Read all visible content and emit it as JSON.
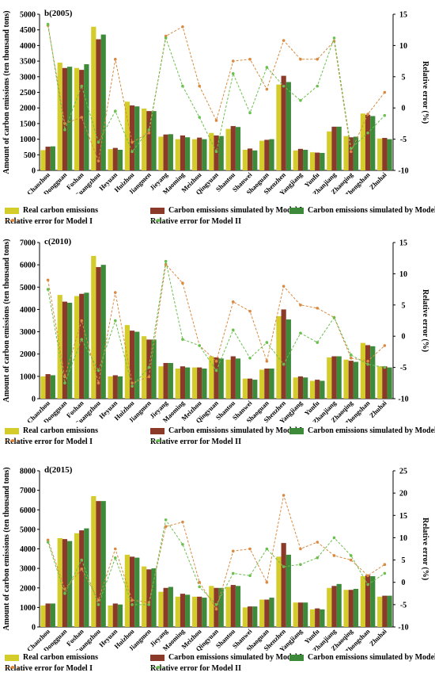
{
  "chart_data": [
    {
      "type": "bar",
      "title": "b(2005)",
      "ylabel": "Amount of carbon emissions (ten thousand tons)",
      "y2label": "Relative error (%)",
      "ylim": [
        0,
        5000
      ],
      "yticks": [
        0,
        500,
        1000,
        1500,
        2000,
        2500,
        3000,
        3500,
        4000,
        4500,
        5000
      ],
      "y2lim": [
        -10,
        15
      ],
      "y2ticks": [
        -10,
        -5,
        0,
        5,
        10,
        15
      ],
      "categories": [
        "Chaozhou",
        "Dongguan",
        "Foshan",
        "Guangzhou",
        "Heyuan",
        "Huizhou",
        "Jiangmen",
        "Jieyang",
        "Maoming",
        "Meizhou",
        "Qingyuan",
        "Shantou",
        "Shanwei",
        "Shaoguan",
        "Shenzhen",
        "Yangjiang",
        "Yunfu",
        "Zhanjiang",
        "Zhaoqing",
        "Zhongshan",
        "Zhuhai"
      ],
      "series": [
        {
          "name": "Real carbon emissions",
          "kind": "bar",
          "color": "#d4cc2a",
          "values": [
            650,
            3450,
            3280,
            4600,
            680,
            2200,
            1980,
            1080,
            1000,
            1000,
            1200,
            1330,
            660,
            950,
            2750,
            640,
            580,
            1250,
            1100,
            1820,
            1020
          ]
        },
        {
          "name": "Carbon emissions simulated by Model I",
          "kind": "bar",
          "color": "#8b3a2a",
          "values": [
            760,
            3280,
            3220,
            4200,
            720,
            2080,
            1900,
            1150,
            1120,
            1050,
            1120,
            1420,
            700,
            980,
            3030,
            690,
            570,
            1400,
            1060,
            1780,
            1040
          ]
        },
        {
          "name": "Carbon emissions simulated by Model II",
          "kind": "bar",
          "color": "#3d8a3a",
          "values": [
            770,
            3320,
            3400,
            4350,
            660,
            2050,
            1900,
            1160,
            1060,
            1000,
            1100,
            1390,
            640,
            1000,
            2830,
            660,
            560,
            1400,
            1080,
            1740,
            1000
          ]
        },
        {
          "name": "Relative error for Model I",
          "kind": "line",
          "axis": "right",
          "color": "#d98a40",
          "values": [
            13.2,
            -2.5,
            -1.5,
            -8.5,
            7.8,
            -5.5,
            -4.0,
            11.5,
            13.0,
            3.5,
            -2.0,
            7.5,
            7.8,
            3.0,
            10.8,
            7.8,
            7.8,
            10.7,
            -7.0,
            -1.0,
            2.5
          ]
        },
        {
          "name": "Relative error for Model II",
          "kind": "line",
          "axis": "right",
          "color": "#6bbf4e",
          "values": [
            13.4,
            -3.5,
            3.5,
            -5.5,
            -0.5,
            -7.0,
            -3.5,
            11.2,
            3.5,
            -1.5,
            -7.0,
            5.5,
            -0.8,
            6.5,
            3.5,
            1.2,
            3.5,
            11.2,
            -6.5,
            -4.0,
            -1.2
          ]
        }
      ]
    },
    {
      "type": "bar",
      "title": "c(2010)",
      "ylabel": "Amount of carbon emissions (ten thousand tons)",
      "y2label": "Relative error (%)",
      "ylim": [
        0,
        7000
      ],
      "yticks": [
        0,
        1000,
        2000,
        3000,
        4000,
        5000,
        6000,
        7000
      ],
      "y2lim": [
        -10,
        15
      ],
      "y2ticks": [
        -10,
        -5,
        0,
        5,
        10,
        15
      ],
      "categories": [
        "Chaozhou",
        "Dongguan",
        "Foshan",
        "Guangzhou",
        "Heyuan",
        "Huizhou",
        "Jiangmen",
        "Jieyang",
        "Maoming",
        "Meizhou",
        "Qingyuan",
        "Shantou",
        "Shanwei",
        "Shaoguan",
        "Shenzhen",
        "Yangjiang",
        "Yunfu",
        "Zhanjiang",
        "Zhaoqing",
        "Zhongshan",
        "Zhuhai"
      ],
      "series": [
        {
          "name": "Real carbon emissions",
          "kind": "bar",
          "color": "#d4cc2a",
          "values": [
            1000,
            4650,
            4600,
            6400,
            1000,
            3300,
            2800,
            1450,
            1350,
            1400,
            1900,
            1750,
            900,
            1300,
            3700,
            950,
            800,
            1850,
            1750,
            2500,
            1450
          ]
        },
        {
          "name": "Carbon emissions simulated by Model I",
          "kind": "bar",
          "color": "#8b3a2a",
          "values": [
            1100,
            4350,
            4700,
            5900,
            1050,
            3050,
            2650,
            1600,
            1450,
            1400,
            1850,
            1900,
            900,
            1350,
            4000,
            1000,
            850,
            1900,
            1700,
            2400,
            1450
          ]
        },
        {
          "name": "Carbon emissions simulated by Model II",
          "kind": "bar",
          "color": "#3d8a3a",
          "values": [
            1050,
            4300,
            4750,
            6000,
            1000,
            3000,
            2650,
            1600,
            1400,
            1350,
            1800,
            1800,
            850,
            1350,
            3550,
            950,
            800,
            1900,
            1650,
            2350,
            1400
          ]
        },
        {
          "name": "Relative error for Model I",
          "kind": "line",
          "axis": "right",
          "color": "#d98a40",
          "values": [
            9.0,
            -6.5,
            2.5,
            -7.5,
            7.0,
            -7.5,
            -6.5,
            11.5,
            8.5,
            -1.5,
            -4.0,
            5.5,
            4.0,
            -4.0,
            8.0,
            5.0,
            4.5,
            3.0,
            -3.5,
            -4.0,
            -1.5
          ]
        },
        {
          "name": "Relative error for Model II",
          "kind": "line",
          "axis": "right",
          "color": "#6bbf4e",
          "values": [
            7.5,
            -7.5,
            -0.5,
            -5.5,
            2.5,
            -8.0,
            -5.0,
            12.0,
            -0.5,
            -1.5,
            -5.5,
            1.0,
            -3.5,
            -1.0,
            -4.5,
            0.5,
            -1.0,
            3.0,
            -3.0,
            -4.5,
            -5.0
          ]
        }
      ]
    },
    {
      "type": "bar",
      "title": "d(2015)",
      "ylabel": "Amount of carbon emissions (ten thousand tons)",
      "y2label": "Relative error (%)",
      "ylim": [
        0,
        8000
      ],
      "yticks": [
        0,
        1000,
        2000,
        3000,
        4000,
        5000,
        6000,
        7000,
        8000
      ],
      "y2lim": [
        -10,
        25
      ],
      "y2ticks": [
        -10,
        -5,
        0,
        5,
        10,
        15,
        20,
        25
      ],
      "categories": [
        "Chaozhou",
        "Dongguan",
        "Foshan",
        "Guangzhou",
        "Heyuan",
        "Huizhou",
        "Jiangmen",
        "Jieyang",
        "Maoming",
        "Meizhou",
        "Qingyuan",
        "Shantou",
        "Shanwei",
        "Shaoguan",
        "Shenzhen",
        "Yangjiang",
        "Yunfu",
        "Zhanjiang",
        "Zhaoqing",
        "Zhongshan",
        "Zhuhai"
      ],
      "series": [
        {
          "name": "Real carbon emissions",
          "kind": "bar",
          "color": "#d4cc2a",
          "values": [
            1100,
            4550,
            4800,
            6700,
            1100,
            3700,
            3100,
            1800,
            1550,
            1550,
            2100,
            2050,
            1000,
            1400,
            3600,
            1250,
            900,
            2000,
            1900,
            2600,
            1550
          ]
        },
        {
          "name": "Carbon emissions simulated by Model I",
          "kind": "bar",
          "color": "#8b3a2a",
          "values": [
            1200,
            4500,
            4950,
            6450,
            1200,
            3600,
            2950,
            2000,
            1700,
            1550,
            2000,
            2150,
            1050,
            1400,
            4300,
            1250,
            950,
            2100,
            1900,
            2650,
            1600
          ]
        },
        {
          "name": "Carbon emissions simulated by Model II",
          "kind": "bar",
          "color": "#3d8a3a",
          "values": [
            1200,
            4400,
            5050,
            6450,
            1150,
            3550,
            3000,
            2050,
            1650,
            1500,
            2000,
            2100,
            1050,
            1500,
            3700,
            1250,
            900,
            2200,
            1950,
            2600,
            1600
          ]
        },
        {
          "name": "Relative error for Model I",
          "kind": "line",
          "axis": "right",
          "color": "#d98a40",
          "values": [
            9.5,
            -1.5,
            3.0,
            -4.0,
            7.5,
            -4.0,
            -4.5,
            12.5,
            13.5,
            0.0,
            -6.0,
            7.0,
            7.5,
            0.0,
            19.5,
            7.5,
            9.0,
            6.0,
            5.0,
            1.5,
            4.0
          ]
        },
        {
          "name": "Relative error for Model II",
          "kind": "line",
          "axis": "right",
          "color": "#6bbf4e",
          "values": [
            9.0,
            -2.5,
            5.0,
            -5.0,
            5.5,
            -5.0,
            -5.0,
            14.0,
            8.5,
            -1.0,
            -5.0,
            2.0,
            1.5,
            7.5,
            3.5,
            4.0,
            5.5,
            10.0,
            6.0,
            -0.5,
            2.0
          ]
        }
      ]
    }
  ],
  "legend": {
    "real": "Real carbon emissions",
    "model1": "Carbon emissions simulated by Model I",
    "model2": "Carbon emissions simulated by Model II",
    "err1": "Relative error for Model I",
    "err2": "Relative error for Model II"
  },
  "colors": {
    "real": "#d4cc2a",
    "model1": "#8b3a2a",
    "model2": "#3d8a3a",
    "err1": "#d98a40",
    "err2": "#6bbf4e"
  }
}
